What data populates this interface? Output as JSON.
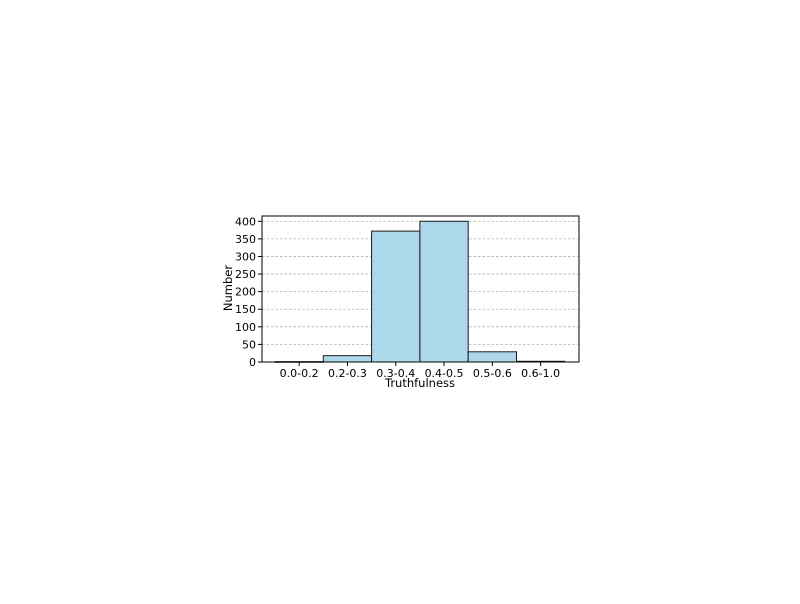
{
  "chart_data": {
    "type": "bar",
    "title": "",
    "xlabel": "Truthfulness",
    "ylabel": "Number",
    "categories": [
      "0.0-0.2",
      "0.2-0.3",
      "0.3-0.4",
      "0.4-0.5",
      "0.5-0.6",
      "0.6-1.0"
    ],
    "values": [
      1,
      18,
      372,
      400,
      29,
      2
    ],
    "ylim": [
      0,
      415
    ],
    "yticks": [
      0,
      50,
      100,
      150,
      200,
      250,
      300,
      350,
      400
    ],
    "grid": "horizontal-dashed",
    "legend": "none",
    "colors": {
      "bar_fill": "#ADD8EC",
      "bar_edge": "#1a1a1a",
      "grid": "#b0b0b0",
      "axis": "#000000"
    }
  }
}
